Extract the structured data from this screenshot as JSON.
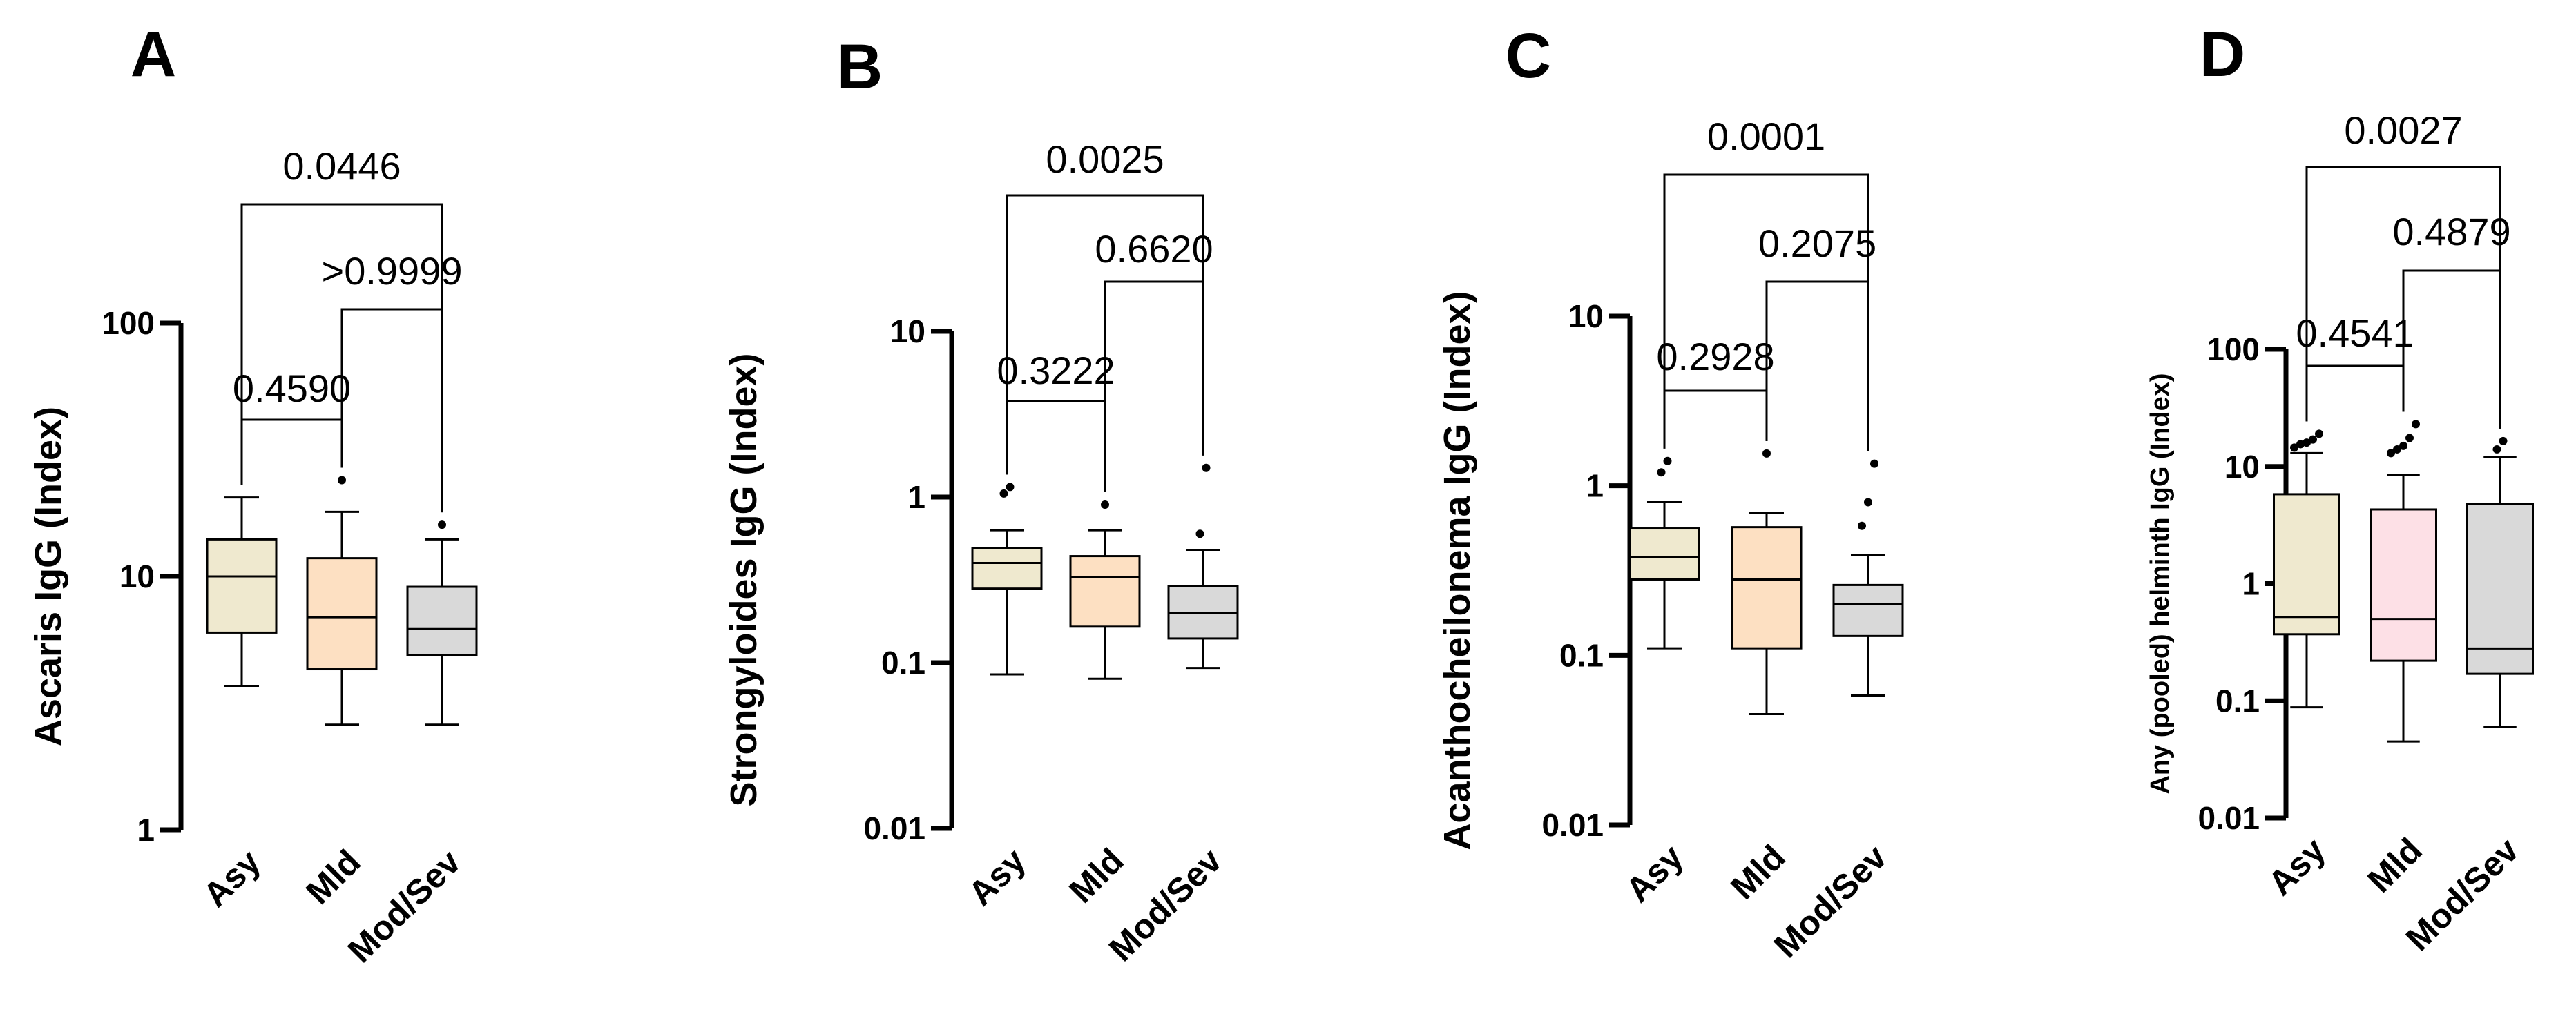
{
  "chart_data": [
    {
      "panel": "A",
      "type": "box",
      "ylabel": "Ascaris IgG (Index)",
      "yscale": "log",
      "ylim": [
        1,
        100
      ],
      "yticks": [
        1,
        10,
        100
      ],
      "ytick_labels": [
        "1",
        "10",
        "100"
      ],
      "categories": [
        "Asy",
        "Mld",
        "Mod/Sev"
      ],
      "colors": [
        "#efe9cf",
        "#fde0c2",
        "#d9d9d9"
      ],
      "boxes": [
        {
          "whisker_low": 3.7,
          "q1": 6.0,
          "median": 10.0,
          "q3": 14.0,
          "whisker_high": 20.5,
          "outliers": []
        },
        {
          "whisker_low": 2.6,
          "q1": 4.3,
          "median": 6.9,
          "q3": 11.8,
          "whisker_high": 18.0,
          "outliers": [
            24
          ]
        },
        {
          "whisker_low": 2.6,
          "q1": 4.9,
          "median": 6.2,
          "q3": 9.1,
          "whisker_high": 14.0,
          "outliers": [
            16
          ]
        }
      ],
      "comparisons": [
        {
          "groups": [
            0,
            1
          ],
          "p": "0.4590"
        },
        {
          "groups": [
            1,
            2
          ],
          "p": ">0.9999"
        },
        {
          "groups": [
            0,
            2
          ],
          "p": "0.0446"
        }
      ]
    },
    {
      "panel": "B",
      "type": "box",
      "ylabel": "Strongyloides IgG (Index)",
      "yscale": "log",
      "ylim": [
        0.01,
        10
      ],
      "yticks": [
        0.01,
        0.1,
        1,
        10
      ],
      "ytick_labels": [
        "0.01",
        "0.1",
        "1",
        "10"
      ],
      "categories": [
        "Asy",
        "Mld",
        "Mod/Sev"
      ],
      "colors": [
        "#efe9cf",
        "#fde0c2",
        "#d9d9d9"
      ],
      "boxes": [
        {
          "whisker_low": 0.085,
          "q1": 0.28,
          "median": 0.4,
          "q3": 0.49,
          "whisker_high": 0.63,
          "outliers": [
            1.05,
            1.15
          ]
        },
        {
          "whisker_low": 0.08,
          "q1": 0.165,
          "median": 0.33,
          "q3": 0.44,
          "whisker_high": 0.63,
          "outliers": [
            0.9
          ]
        },
        {
          "whisker_low": 0.093,
          "q1": 0.14,
          "median": 0.2,
          "q3": 0.29,
          "whisker_high": 0.48,
          "outliers": [
            0.6,
            1.5
          ]
        }
      ],
      "comparisons": [
        {
          "groups": [
            0,
            1
          ],
          "p": "0.3222"
        },
        {
          "groups": [
            1,
            2
          ],
          "p": "0.6620"
        },
        {
          "groups": [
            0,
            2
          ],
          "p": "0.0025"
        }
      ]
    },
    {
      "panel": "C",
      "type": "box",
      "ylabel": "Acanthocheilonema IgG (Index)",
      "yscale": "log",
      "ylim": [
        0.01,
        10
      ],
      "yticks": [
        0.01,
        0.1,
        1,
        10
      ],
      "ytick_labels": [
        "0.01",
        "0.1",
        "1",
        "10"
      ],
      "categories": [
        "Asy",
        "Mld",
        "Mod/Sev"
      ],
      "colors": [
        "#efe9cf",
        "#fde0c2",
        "#d9d9d9"
      ],
      "boxes": [
        {
          "whisker_low": 0.11,
          "q1": 0.28,
          "median": 0.38,
          "q3": 0.56,
          "whisker_high": 0.8,
          "outliers": [
            1.2,
            1.4
          ]
        },
        {
          "whisker_low": 0.045,
          "q1": 0.11,
          "median": 0.28,
          "q3": 0.57,
          "whisker_high": 0.69,
          "outliers": [
            1.55
          ]
        },
        {
          "whisker_low": 0.058,
          "q1": 0.13,
          "median": 0.2,
          "q3": 0.26,
          "whisker_high": 0.39,
          "outliers": [
            0.58,
            0.8,
            1.35
          ]
        }
      ],
      "comparisons": [
        {
          "groups": [
            0,
            1
          ],
          "p": "0.2928"
        },
        {
          "groups": [
            1,
            2
          ],
          "p": "0.2075"
        },
        {
          "groups": [
            0,
            2
          ],
          "p": "0.0001"
        }
      ]
    },
    {
      "panel": "D",
      "type": "box",
      "ylabel": "Any (pooled) helminth IgG (Index)",
      "yscale": "log",
      "ylim": [
        0.01,
        100
      ],
      "yticks": [
        0.01,
        0.1,
        1,
        10,
        100
      ],
      "ytick_labels": [
        "0.01",
        "0.1",
        "1",
        "10",
        "100"
      ],
      "categories": [
        "Asy",
        "Mld",
        "Mod/Sev"
      ],
      "colors": [
        "#efe9cf",
        "#fde0e6",
        "#d9d9d9"
      ],
      "boxes": [
        {
          "whisker_low": 0.088,
          "q1": 0.37,
          "median": 0.52,
          "q3": 5.8,
          "whisker_high": 13.0,
          "outliers": [
            14.5,
            15.5,
            16.0,
            17.0,
            19.0
          ]
        },
        {
          "whisker_low": 0.045,
          "q1": 0.22,
          "median": 0.5,
          "q3": 4.3,
          "whisker_high": 8.5,
          "outliers": [
            13.0,
            14.0,
            15.0,
            17.5,
            23.0
          ]
        },
        {
          "whisker_low": 0.06,
          "q1": 0.17,
          "median": 0.28,
          "q3": 4.8,
          "whisker_high": 12.0,
          "outliers": [
            14.0,
            16.5
          ]
        }
      ],
      "comparisons": [
        {
          "groups": [
            0,
            1
          ],
          "p": "0.4541"
        },
        {
          "groups": [
            1,
            2
          ],
          "p": "0.4879"
        },
        {
          "groups": [
            0,
            2
          ],
          "p": "0.0027"
        }
      ]
    }
  ]
}
